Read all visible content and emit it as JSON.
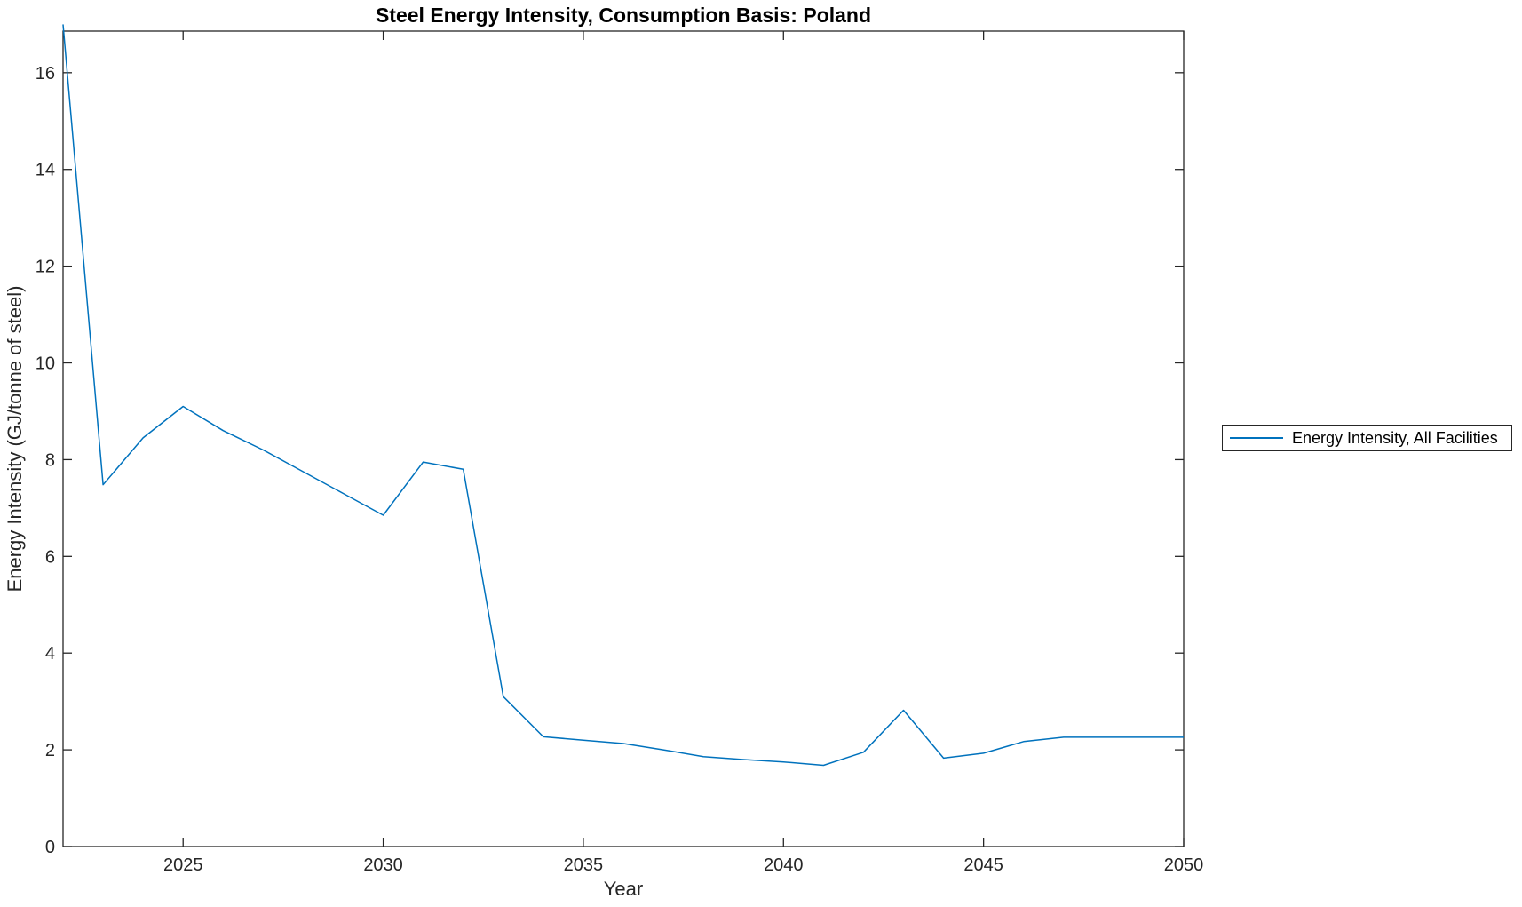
{
  "chart_data": {
    "type": "line",
    "title": "Steel Energy Intensity, Consumption Basis: Poland",
    "xlabel": "Year",
    "ylabel": "Energy Intensity (GJ/tonne of steel)",
    "x": [
      2022,
      2023,
      2024,
      2025,
      2026,
      2027,
      2028,
      2029,
      2030,
      2031,
      2032,
      2033,
      2034,
      2035,
      2036,
      2037,
      2038,
      2039,
      2040,
      2041,
      2042,
      2043,
      2044,
      2045,
      2046,
      2047,
      2048,
      2049,
      2050
    ],
    "series": [
      {
        "name": "Energy Intensity, All Facilities",
        "color": "#0072BD",
        "values": [
          17.0,
          7.48,
          8.45,
          9.1,
          8.6,
          8.2,
          7.75,
          7.3,
          6.85,
          7.95,
          7.8,
          3.1,
          2.27,
          2.2,
          2.13,
          2.0,
          1.86,
          1.8,
          1.75,
          1.68,
          1.95,
          2.82,
          1.83,
          1.93,
          2.17,
          2.26,
          2.26,
          2.26,
          2.26
        ]
      }
    ],
    "xlim": [
      2022,
      2050
    ],
    "ylim": [
      0,
      16.86
    ],
    "xticks": [
      2025,
      2030,
      2035,
      2040,
      2045,
      2050
    ],
    "yticks": [
      0,
      2,
      4,
      6,
      8,
      10,
      12,
      14,
      16
    ],
    "grid": false,
    "legend": {
      "entries": [
        "Energy Intensity, All Facilities"
      ],
      "position": "right-outside",
      "boxed": true
    },
    "axis_color": "#262626",
    "tick_direction": "in"
  }
}
